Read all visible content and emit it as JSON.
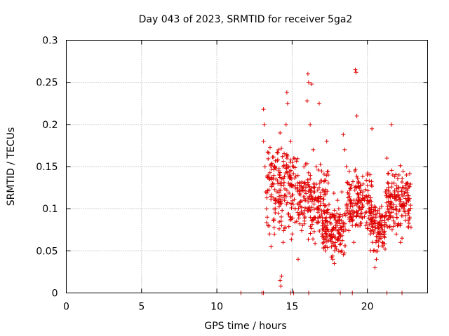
{
  "chart_data": {
    "type": "scatter",
    "title": "Day 043 of 2023, SRMTID for receiver 5ga2",
    "xlabel": "GPS time / hours",
    "ylabel": "SRMTID / TECUs",
    "xlim": [
      0,
      24
    ],
    "ylim": [
      0,
      0.3
    ],
    "xticks": [
      0,
      5,
      10,
      15,
      20
    ],
    "yticks": [
      0,
      0.05,
      0.1,
      0.15,
      0.2,
      0.25,
      0.3
    ],
    "ytick_labels": [
      "0",
      "0.05",
      "0.1",
      "0.15",
      "0.2",
      "0.25",
      "0.3"
    ],
    "grid": true,
    "marker": "+",
    "series": [
      {
        "name": "SRMTID",
        "color": "#e00000",
        "points": [
          [
            11.6,
            0
          ],
          [
            13.0,
            0
          ],
          [
            13.1,
            0
          ],
          [
            14.9,
            0
          ],
          [
            15.1,
            0
          ],
          [
            16.1,
            0
          ],
          [
            18.2,
            0
          ],
          [
            19.0,
            0
          ],
          [
            21.3,
            0
          ],
          [
            22.3,
            0
          ],
          [
            13.1,
            0.218
          ],
          [
            13.15,
            0.2
          ],
          [
            13.1,
            0.18
          ],
          [
            13.2,
            0.15
          ],
          [
            13.25,
            0.12
          ],
          [
            13.3,
            0.1
          ],
          [
            13.35,
            0.09
          ],
          [
            13.4,
            0.08
          ],
          [
            13.5,
            0.07
          ],
          [
            13.6,
            0.055
          ],
          [
            13.7,
            0.13
          ],
          [
            13.8,
            0.15
          ],
          [
            13.9,
            0.1
          ],
          [
            14.0,
            0.12
          ],
          [
            14.1,
            0.17
          ],
          [
            14.2,
            0.19
          ],
          [
            14.3,
            0.08
          ],
          [
            14.4,
            0.06
          ],
          [
            14.5,
            0.11
          ],
          [
            14.6,
            0.2
          ],
          [
            14.65,
            0.238
          ],
          [
            14.7,
            0.225
          ],
          [
            14.8,
            0.14
          ],
          [
            14.9,
            0.09
          ],
          [
            15.0,
            0.07
          ],
          [
            15.1,
            0.15
          ],
          [
            15.2,
            0.1
          ],
          [
            15.3,
            0.085
          ],
          [
            15.4,
            0.04
          ],
          [
            15.5,
            0.12
          ],
          [
            15.6,
            0.095
          ],
          [
            15.7,
            0.08
          ],
          [
            15.8,
            0.13
          ],
          [
            15.9,
            0.11
          ],
          [
            16.0,
            0.228
          ],
          [
            16.05,
            0.26
          ],
          [
            16.1,
            0.25
          ],
          [
            16.2,
            0.2
          ],
          [
            16.3,
            0.248
          ],
          [
            16.4,
            0.17
          ],
          [
            16.5,
            0.12
          ],
          [
            16.6,
            0.15
          ],
          [
            16.7,
            0.1
          ],
          [
            16.8,
            0.225
          ],
          [
            16.9,
            0.09
          ],
          [
            17.0,
            0.07
          ],
          [
            17.1,
            0.06
          ],
          [
            17.2,
            0.05
          ],
          [
            17.3,
            0.18
          ],
          [
            17.4,
            0.14
          ],
          [
            17.5,
            0.09
          ],
          [
            17.6,
            0.065
          ],
          [
            17.7,
            0.04
          ],
          [
            17.8,
            0.035
          ],
          [
            17.9,
            0.055
          ],
          [
            18.0,
            0.08
          ],
          [
            18.1,
            0.1
          ],
          [
            18.2,
            0.07
          ],
          [
            18.3,
            0.12
          ],
          [
            18.4,
            0.188
          ],
          [
            18.5,
            0.17
          ],
          [
            18.6,
            0.15
          ],
          [
            18.7,
            0.13
          ],
          [
            18.8,
            0.09
          ],
          [
            18.9,
            0.11
          ],
          [
            19.0,
            0.08
          ],
          [
            19.1,
            0.06
          ],
          [
            19.2,
            0.265
          ],
          [
            19.25,
            0.262
          ],
          [
            19.3,
            0.21
          ],
          [
            19.4,
            0.13
          ],
          [
            19.5,
            0.1
          ],
          [
            19.6,
            0.09
          ],
          [
            19.7,
            0.12
          ],
          [
            19.8,
            0.11
          ],
          [
            19.9,
            0.08
          ],
          [
            20.0,
            0.14
          ],
          [
            20.1,
            0.1
          ],
          [
            20.2,
            0.07
          ],
          [
            20.3,
            0.195
          ],
          [
            20.35,
            0.06
          ],
          [
            20.4,
            0.05
          ],
          [
            20.5,
            0.03
          ],
          [
            20.6,
            0.04
          ],
          [
            20.7,
            0.08
          ],
          [
            20.8,
            0.1
          ],
          [
            20.9,
            0.065
          ],
          [
            21.0,
            0.06
          ],
          [
            21.1,
            0.07
          ],
          [
            21.2,
            0.12
          ],
          [
            21.3,
            0.16
          ],
          [
            21.4,
            0.13
          ],
          [
            21.5,
            0.1
          ],
          [
            21.6,
            0.2
          ],
          [
            21.7,
            0.09
          ],
          [
            21.8,
            0.12
          ],
          [
            21.9,
            0.11
          ],
          [
            22.0,
            0.08
          ],
          [
            22.1,
            0.14
          ],
          [
            22.2,
            0.06
          ],
          [
            22.3,
            0.065
          ],
          [
            22.4,
            0.1
          ],
          [
            22.5,
            0.12
          ],
          [
            22.6,
            0.14
          ],
          [
            22.7,
            0.13
          ],
          [
            22.8,
            0.09
          ],
          [
            22.9,
            0.078
          ],
          [
            14.2,
            0.015
          ],
          [
            14.3,
            0.02
          ],
          [
            14.25,
            0.008
          ]
        ],
        "dense_regions": [
          {
            "x_range": [
              13.3,
              15.4
            ],
            "y_range": [
              0.05,
              0.2
            ]
          },
          {
            "x_range": [
              15.4,
              17.4
            ],
            "y_range": [
              0.05,
              0.17
            ]
          },
          {
            "x_range": [
              17.0,
              18.6
            ],
            "y_range": [
              0.03,
              0.12
            ]
          },
          {
            "x_range": [
              18.6,
              20.3
            ],
            "y_range": [
              0.06,
              0.16
            ]
          },
          {
            "x_range": [
              20.2,
              21.2
            ],
            "y_range": [
              0.04,
              0.12
            ]
          },
          {
            "x_range": [
              21.2,
              22.9
            ],
            "y_range": [
              0.06,
              0.16
            ]
          }
        ]
      }
    ]
  }
}
